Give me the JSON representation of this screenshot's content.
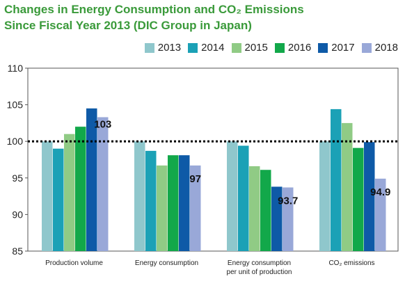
{
  "title_line1": "Changes in Energy Consumption and CO₂ Emissions",
  "title_line2": "Since Fiscal Year 2013 (DIC Group in Japan)",
  "chart_data": {
    "type": "bar",
    "title": "Changes in Energy Consumption and CO₂ Emissions Since Fiscal Year 2013 (DIC Group in Japan)",
    "categories": [
      "Production volume",
      "Energy consumption",
      "Energy consumption per unit of production",
      "CO₂ emissions"
    ],
    "category_lines": [
      [
        "Production volume"
      ],
      [
        "Energy consumption"
      ],
      [
        "Energy consumption",
        "per unit of production"
      ],
      [
        "CO₂ emissions"
      ]
    ],
    "series": [
      {
        "name": "2013",
        "color": "#8fc7cc",
        "values": [
          100,
          100,
          100,
          100
        ]
      },
      {
        "name": "2014",
        "color": "#1ba1b6",
        "values": [
          99,
          98.7,
          99.4,
          104.4
        ]
      },
      {
        "name": "2015",
        "color": "#90cb85",
        "values": [
          101,
          96.7,
          96.6,
          102.5
        ]
      },
      {
        "name": "2016",
        "color": "#12a84a",
        "values": [
          102,
          98.1,
          96.1,
          99.1
        ]
      },
      {
        "name": "2017",
        "color": "#0e5aa7",
        "values": [
          104.5,
          98.1,
          93.8,
          99.9
        ]
      },
      {
        "name": "2018",
        "color": "#99a8d8",
        "values": [
          103.3,
          96.7,
          93.7,
          94.9
        ]
      }
    ],
    "data_labels": [
      {
        "category": 0,
        "text": "103"
      },
      {
        "category": 1,
        "text": "97"
      },
      {
        "category": 2,
        "text": "93.7"
      },
      {
        "category": 3,
        "text": "94.9"
      }
    ],
    "ylim": [
      85,
      110
    ],
    "yticks": [
      85,
      90,
      95,
      100,
      105,
      110
    ],
    "reference_line": 100,
    "legend_position": "top-right",
    "grid": false
  }
}
